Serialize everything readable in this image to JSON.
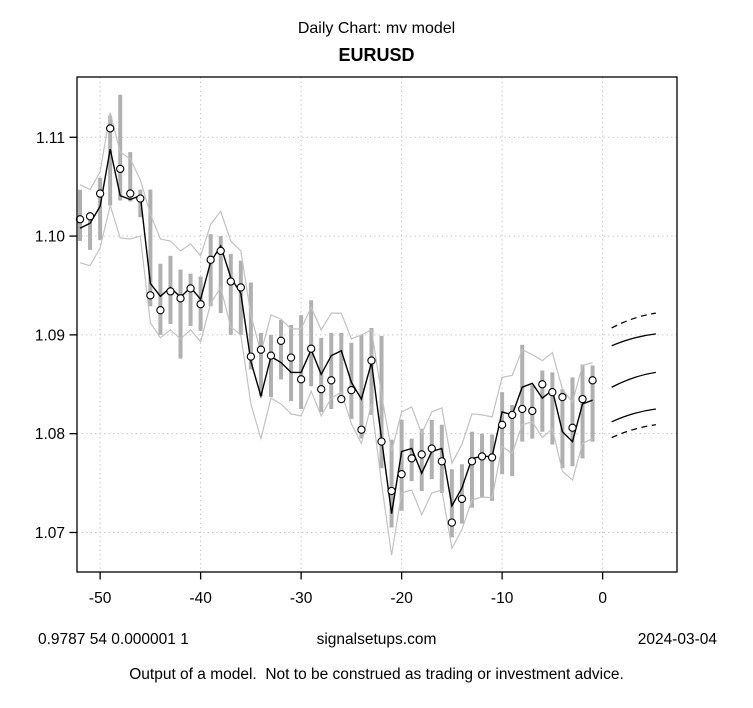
{
  "header": {
    "supertitle": "Daily Chart: mv model",
    "symbol": "EURUSD"
  },
  "footer": {
    "stats": "0.9787 54 0.000001 1",
    "site": "signalsetups.com",
    "date": "2024-03-04",
    "disclaimer": "Output of a model.  Not to be construed as trading or investment advice."
  },
  "chart_data": {
    "type": "line",
    "title": "EURUSD",
    "supertitle": "Daily Chart: mv model",
    "xlabel": "",
    "ylabel": "",
    "xlim": [
      -52.3,
      7.4
    ],
    "ylim": [
      1.066,
      1.1161
    ],
    "grid": true,
    "legend_position": "none",
    "x_ticks": {
      "values": [
        -50,
        -40,
        -30,
        -20,
        -10,
        0
      ],
      "labels": [
        "-50",
        "-40",
        "-30",
        "-20",
        "-10",
        "0"
      ]
    },
    "y_ticks": {
      "values": [
        1.07,
        1.08,
        1.09,
        1.1,
        1.11
      ],
      "labels": [
        "1.07",
        "1.08",
        "1.09",
        "1.10",
        "1.11"
      ]
    },
    "x": [
      -52,
      -51,
      -50,
      -49,
      -48,
      -47,
      -46,
      -45,
      -44,
      -43,
      -42,
      -41,
      -40,
      -39,
      -38,
      -37,
      -36,
      -35,
      -34,
      -33,
      -32,
      -31,
      -30,
      -29,
      -28,
      -27,
      -26,
      -25,
      -24,
      -23,
      -22,
      -21,
      -20,
      -19,
      -18,
      -17,
      -16,
      -15,
      -14,
      -13,
      -12,
      -11,
      -10,
      -9,
      -8,
      -7,
      -6,
      -5,
      -4,
      -3,
      -2,
      -1
    ],
    "series": [
      {
        "name": "daily-range-bars",
        "type": "bar-range",
        "high": [
          1.1047,
          1.1022,
          1.1059,
          1.1122,
          1.1143,
          1.1085,
          1.1047,
          1.1047,
          1.0972,
          1.098,
          1.0966,
          1.0962,
          1.0959,
          1.1002,
          1.1,
          1.0982,
          1.0975,
          1.0953,
          1.0902,
          1.09,
          1.0915,
          1.091,
          1.092,
          1.0935,
          1.0897,
          1.0902,
          1.0902,
          1.0892,
          1.09,
          1.0907,
          1.0899,
          1.0794,
          1.0814,
          1.0795,
          1.0805,
          1.0814,
          1.0809,
          1.0764,
          1.0769,
          1.0802,
          1.08,
          1.0799,
          1.0842,
          1.0829,
          1.089,
          1.0849,
          1.0864,
          1.0862,
          1.0845,
          1.0857,
          1.087,
          1.0869
        ],
        "low": [
          1.0995,
          1.0986,
          1.0996,
          1.1031,
          1.1036,
          1.1035,
          1.1019,
          1.0929,
          1.09,
          1.0911,
          1.0876,
          1.0909,
          1.0904,
          1.0929,
          1.0922,
          1.09,
          1.09,
          1.0865,
          1.0838,
          1.0837,
          1.0855,
          1.0833,
          1.0825,
          1.0848,
          1.0822,
          1.0825,
          1.0835,
          1.0815,
          1.0795,
          1.0819,
          1.0765,
          1.0705,
          1.0722,
          1.0752,
          1.0742,
          1.0754,
          1.074,
          1.0695,
          1.0709,
          1.0725,
          1.0735,
          1.0732,
          1.0759,
          1.0757,
          1.0792,
          1.0795,
          1.0802,
          1.0789,
          1.0765,
          1.0767,
          1.0775,
          1.0792
        ]
      },
      {
        "name": "upper-band",
        "type": "line",
        "role": "band",
        "values": [
          1.1052,
          1.1047,
          1.1065,
          1.1125,
          1.1085,
          1.1078,
          1.1057,
          1.1022,
          1.0997,
          1.0995,
          1.0985,
          1.0992,
          1.098,
          1.1012,
          1.1025,
          1.0995,
          1.0985,
          1.092,
          1.0882,
          1.092,
          1.0916,
          1.0906,
          1.0906,
          1.0928,
          1.0905,
          1.0922,
          1.0922,
          1.0896,
          1.09,
          1.0905,
          1.084,
          1.0782,
          1.0822,
          1.0827,
          1.08,
          1.0822,
          1.0826,
          1.077,
          1.0789,
          1.082,
          1.0819,
          1.0817,
          1.0857,
          1.0859,
          1.0885,
          1.088,
          1.0874,
          1.0882,
          1.0845,
          1.0832,
          1.0869,
          1.0872
        ]
      },
      {
        "name": "lower-band",
        "type": "line",
        "role": "band",
        "values": [
          1.0973,
          1.097,
          1.0988,
          1.1031,
          1.0998,
          1.0997,
          1.1,
          1.0912,
          1.0897,
          1.0905,
          1.0896,
          1.0905,
          1.0893,
          1.0932,
          1.0948,
          1.0908,
          1.09,
          1.083,
          1.0795,
          1.0836,
          1.083,
          1.082,
          1.0818,
          1.0843,
          1.0818,
          1.0836,
          1.0842,
          1.081,
          1.079,
          1.083,
          1.075,
          1.0677,
          1.074,
          1.0743,
          1.0718,
          1.074,
          1.0743,
          1.0684,
          1.0703,
          1.0733,
          1.0736,
          1.0735,
          1.0787,
          1.078,
          1.0809,
          1.0812,
          1.0796,
          1.0805,
          1.0762,
          1.0753,
          1.079,
          1.0795
        ]
      },
      {
        "name": "model-fit",
        "type": "line",
        "role": "main",
        "values": [
          1.1008,
          1.1013,
          1.103,
          1.1088,
          1.1041,
          1.1037,
          1.1041,
          1.0952,
          1.0939,
          1.0948,
          1.0938,
          1.0948,
          1.0936,
          1.0974,
          1.099,
          1.0958,
          1.0942,
          1.0873,
          1.0838,
          1.0878,
          1.0872,
          1.0862,
          1.0862,
          1.0885,
          1.086,
          1.0879,
          1.0884,
          1.0852,
          1.0835,
          1.0872,
          1.0795,
          1.0719,
          1.0782,
          1.0785,
          1.076,
          1.0782,
          1.0785,
          1.0727,
          1.0745,
          1.0775,
          1.0777,
          1.0777,
          1.0822,
          1.0819,
          1.0847,
          1.0851,
          1.0836,
          1.0844,
          1.0802,
          1.0792,
          1.083,
          1.0834
        ]
      },
      {
        "name": "observed-close",
        "type": "scatter",
        "values": [
          1.1017,
          1.102,
          1.1043,
          1.1109,
          1.1068,
          1.1043,
          1.1038,
          1.094,
          1.0925,
          1.0944,
          1.0937,
          1.0947,
          1.0931,
          1.0976,
          1.0985,
          1.0954,
          1.0948,
          1.0878,
          1.0885,
          1.0879,
          1.0894,
          1.0877,
          1.0855,
          1.0886,
          1.0845,
          1.0854,
          1.0835,
          1.0844,
          1.0804,
          1.0874,
          1.0792,
          1.0742,
          1.0759,
          1.0775,
          1.0779,
          1.0785,
          1.0772,
          1.071,
          1.0734,
          1.0772,
          1.0777,
          1.0776,
          1.0809,
          1.0819,
          1.0825,
          1.0823,
          1.085,
          1.0842,
          1.0837,
          1.0806,
          1.0835,
          1.0854
        ]
      }
    ],
    "forecast_fan": {
      "x_start": 0.9,
      "x_end": 5.3,
      "lines": [
        {
          "name": "upper-outer",
          "style": "dashed",
          "y_start": 1.0907,
          "y_end": 1.0922
        },
        {
          "name": "upper-inner",
          "style": "solid",
          "y_start": 1.0889,
          "y_end": 1.0901
        },
        {
          "name": "center",
          "style": "solid",
          "y_start": 1.0847,
          "y_end": 1.0862
        },
        {
          "name": "lower-inner",
          "style": "solid",
          "y_start": 1.0812,
          "y_end": 1.0825
        },
        {
          "name": "lower-outer",
          "style": "dashed",
          "y_start": 1.0796,
          "y_end": 1.0809
        }
      ]
    },
    "colors": {
      "bar": "#b0b0b0",
      "band": "#c2c2c2",
      "line": "#000000",
      "point_stroke": "#000000",
      "point_fill": "#ffffff",
      "grid": "#c9c9c9",
      "axis": "#000000",
      "text": "#000000",
      "background": "#ffffff"
    }
  }
}
